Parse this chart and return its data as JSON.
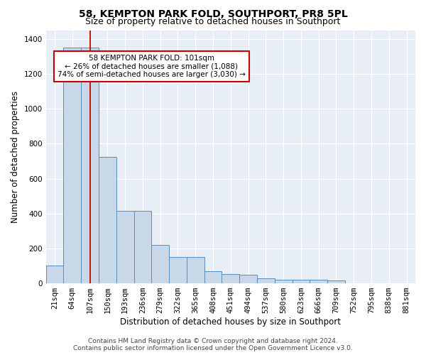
{
  "title": "58, KEMPTON PARK FOLD, SOUTHPORT, PR8 5PL",
  "subtitle": "Size of property relative to detached houses in Southport",
  "xlabel": "Distribution of detached houses by size in Southport",
  "ylabel": "Number of detached properties",
  "categories": [
    "21sqm",
    "64sqm",
    "107sqm",
    "150sqm",
    "193sqm",
    "236sqm",
    "279sqm",
    "322sqm",
    "365sqm",
    "408sqm",
    "451sqm",
    "494sqm",
    "537sqm",
    "580sqm",
    "623sqm",
    "666sqm",
    "709sqm",
    "752sqm",
    "795sqm",
    "838sqm",
    "881sqm"
  ],
  "bar_heights": [
    100,
    1350,
    1350,
    725,
    415,
    415,
    220,
    150,
    150,
    70,
    55,
    50,
    30,
    20,
    20,
    20,
    15,
    0,
    0,
    0,
    0
  ],
  "bar_color": "#c8d8e8",
  "bar_edge_color": "#5b8db8",
  "vline_color": "#cc0000",
  "vline_x_data": 2.0,
  "annotation_text": "58 KEMPTON PARK FOLD: 101sqm\n← 26% of detached houses are smaller (1,088)\n74% of semi-detached houses are larger (3,030) →",
  "annotation_box_facecolor": "#ffffff",
  "annotation_box_edgecolor": "#cc0000",
  "ylim": [
    0,
    1450
  ],
  "yticks": [
    0,
    200,
    400,
    600,
    800,
    1000,
    1200,
    1400
  ],
  "plot_bg_color": "#e8eef5",
  "fig_bg_color": "#ffffff",
  "footer_text": "Contains HM Land Registry data © Crown copyright and database right 2024.\nContains public sector information licensed under the Open Government Licence v3.0.",
  "title_fontsize": 10,
  "subtitle_fontsize": 9,
  "tick_fontsize": 7.5,
  "ylabel_fontsize": 8.5,
  "xlabel_fontsize": 8.5,
  "footer_fontsize": 6.5
}
